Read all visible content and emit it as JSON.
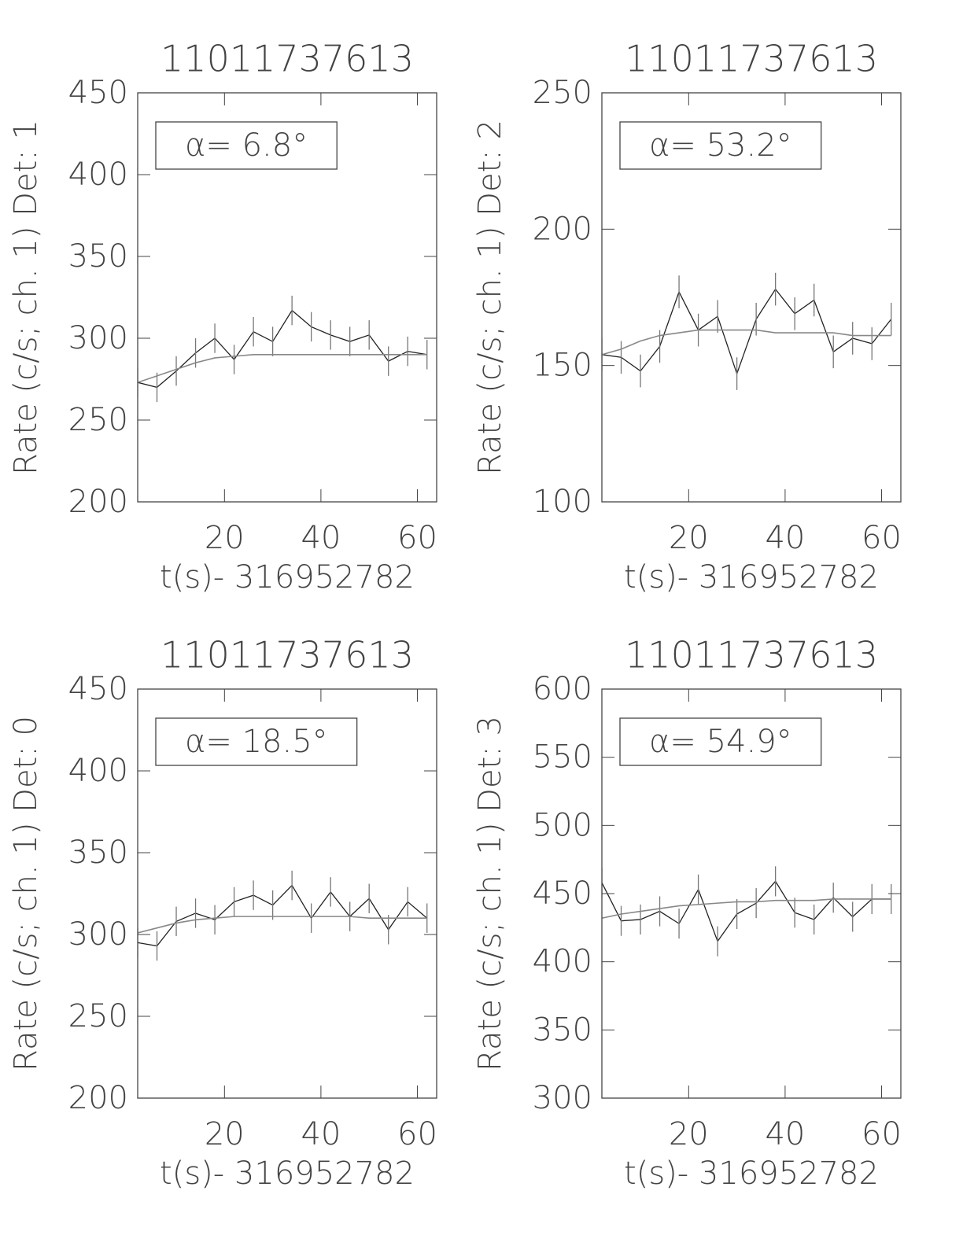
{
  "chart_data": [
    {
      "type": "line",
      "title": "11011737613",
      "xlabel": "t(s)- 316952782",
      "ylabel": "Rate (c/s; ch. 1) Det: 1",
      "annotation": "α= 6.8°",
      "xlim": [
        2,
        64
      ],
      "xticks": [
        20,
        40,
        60
      ],
      "ylim": [
        200,
        450
      ],
      "yticks": [
        200,
        250,
        300,
        350,
        400,
        450
      ],
      "x": [
        2,
        6,
        10,
        14,
        18,
        22,
        26,
        30,
        34,
        38,
        42,
        46,
        50,
        54,
        58,
        62
      ],
      "series": [
        {
          "color": "#222222",
          "values": [
            273,
            270,
            280,
            291,
            300,
            287,
            304,
            298,
            317,
            307,
            302,
            298,
            302,
            286,
            292,
            290
          ],
          "errors": [
            9,
            9,
            9,
            9,
            9,
            9,
            9,
            9,
            9,
            9,
            9,
            9,
            9,
            9,
            9,
            9
          ]
        },
        {
          "color": "#888888",
          "values": [
            273,
            277,
            281,
            285,
            288,
            289,
            290,
            290,
            290,
            290,
            290,
            290,
            290,
            290,
            290,
            290
          ]
        }
      ]
    },
    {
      "type": "line",
      "title": "11011737613",
      "xlabel": "t(s)- 316952782",
      "ylabel": "Rate (c/s; ch. 1) Det: 2",
      "annotation": "α= 53.2°",
      "xlim": [
        2,
        64
      ],
      "xticks": [
        20,
        40,
        60
      ],
      "ylim": [
        100,
        250
      ],
      "yticks": [
        100,
        150,
        200,
        250
      ],
      "x": [
        2,
        6,
        10,
        14,
        18,
        22,
        26,
        30,
        34,
        38,
        42,
        46,
        50,
        54,
        58,
        62
      ],
      "series": [
        {
          "color": "#222222",
          "values": [
            154,
            153,
            148,
            157,
            177,
            163,
            168,
            147,
            167,
            178,
            169,
            174,
            155,
            160,
            158,
            167
          ],
          "errors": [
            6,
            6,
            6,
            6,
            6,
            6,
            6,
            6,
            6,
            6,
            6,
            6,
            6,
            6,
            6,
            6
          ]
        },
        {
          "color": "#888888",
          "values": [
            154,
            156,
            159,
            161,
            162,
            163,
            163,
            163,
            163,
            162,
            162,
            162,
            162,
            161,
            161,
            161
          ]
        }
      ]
    },
    {
      "type": "line",
      "title": "11011737613",
      "xlabel": "t(s)- 316952782",
      "ylabel": "Rate (c/s; ch. 1) Det: 0",
      "annotation": "α= 18.5°",
      "xlim": [
        2,
        64
      ],
      "xticks": [
        20,
        40,
        60
      ],
      "ylim": [
        200,
        450
      ],
      "yticks": [
        200,
        250,
        300,
        350,
        400,
        450
      ],
      "x": [
        2,
        6,
        10,
        14,
        18,
        22,
        26,
        30,
        34,
        38,
        42,
        46,
        50,
        54,
        58,
        62
      ],
      "series": [
        {
          "color": "#222222",
          "values": [
            295,
            293,
            308,
            313,
            309,
            320,
            324,
            318,
            330,
            310,
            326,
            311,
            322,
            303,
            320,
            310
          ],
          "errors": [
            9,
            9,
            9,
            9,
            9,
            9,
            9,
            9,
            9,
            9,
            9,
            9,
            9,
            9,
            9,
            9
          ]
        },
        {
          "color": "#888888",
          "values": [
            301,
            304,
            307,
            309,
            310,
            311,
            311,
            311,
            311,
            311,
            311,
            311,
            310,
            310,
            310,
            310
          ]
        }
      ]
    },
    {
      "type": "line",
      "title": "11011737613",
      "xlabel": "t(s)- 316952782",
      "ylabel": "Rate (c/s; ch. 1) Det: 3",
      "annotation": "α= 54.9°",
      "xlim": [
        2,
        64
      ],
      "xticks": [
        20,
        40,
        60
      ],
      "ylim": [
        300,
        600
      ],
      "yticks": [
        300,
        350,
        400,
        450,
        500,
        550,
        600
      ],
      "x": [
        2,
        6,
        10,
        14,
        18,
        22,
        26,
        30,
        34,
        38,
        42,
        46,
        50,
        54,
        58,
        62
      ],
      "series": [
        {
          "color": "#222222",
          "values": [
            458,
            430,
            431,
            437,
            428,
            453,
            415,
            435,
            443,
            459,
            436,
            431,
            447,
            433,
            446,
            446
          ],
          "errors": [
            11,
            11,
            11,
            11,
            11,
            11,
            11,
            11,
            11,
            11,
            11,
            11,
            11,
            11,
            11,
            11
          ]
        },
        {
          "color": "#888888",
          "values": [
            432,
            435,
            437,
            439,
            441,
            442,
            443,
            444,
            444,
            445,
            445,
            445,
            446,
            446,
            446,
            446
          ]
        }
      ]
    }
  ]
}
